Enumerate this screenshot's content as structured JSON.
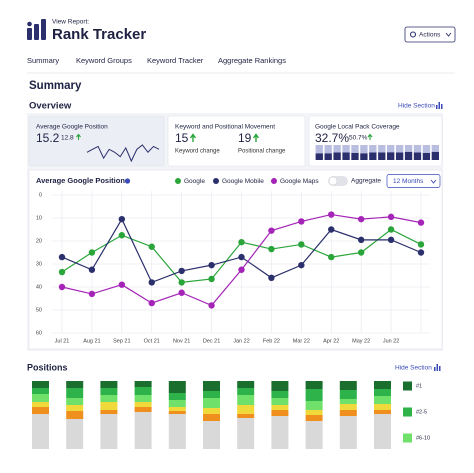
{
  "header": {
    "eyebrow": "View Report:",
    "title": "Rank Tracker",
    "action": "Actions"
  },
  "nav": [
    "Summary",
    "Keyword Groups",
    "Keyword Tracker",
    "Aggregate Rankings"
  ],
  "page_title": "Summary",
  "overview": {
    "title": "Overview",
    "hide": "Hide Section",
    "cards": [
      {
        "title": "Average Google Position",
        "value": "15.2",
        "change": "12.8",
        "sparkline": {
          "type": "line",
          "color": "#2b2f6b",
          "values": [
            18,
            17,
            16,
            20,
            17,
            18,
            19.5,
            16.5,
            21,
            17,
            15.5,
            18,
            16,
            17
          ]
        }
      },
      {
        "title": "Keyword and Positional Movement",
        "metrics": [
          {
            "value": "15",
            "label": "Keyword change"
          },
          {
            "value": "19",
            "label": "Positional change"
          }
        ]
      },
      {
        "title": "Google Local Pack Coverage",
        "value": "32.7%",
        "change": "50.7%",
        "bars": {
          "type": "bar",
          "series": [
            {
              "color": "#2b2f6b",
              "values": [
                45,
                45,
                50,
                50,
                48,
                45,
                50,
                50,
                52,
                50,
                55,
                50,
                48,
                55
              ]
            },
            {
              "color": "#b9bde0",
              "values": [
                55,
                55,
                50,
                50,
                52,
                55,
                50,
                50,
                48,
                50,
                45,
                50,
                52,
                45
              ]
            }
          ]
        }
      }
    ]
  },
  "line_chart": {
    "type": "line",
    "title": "Average Google Position",
    "toggle": "Aggregate",
    "period": "12 Months",
    "categories": [
      "Jul 21",
      "Aug 21",
      "Sep 21",
      "Oct 21",
      "Nov 21",
      "Dec 21",
      "Jan 22",
      "Feb 22",
      "Mar 22",
      "Apr 22",
      "May 22",
      "Jun 22",
      null
    ],
    "series": [
      {
        "name": "Google",
        "color": "#2aa53a",
        "values": [
          33.5,
          25,
          17.5,
          22.5,
          38,
          36.5,
          20.5,
          23.5,
          21.5,
          27,
          25,
          15,
          21.5
        ]
      },
      {
        "name": "Google Mobile",
        "color": "#2b2f6b",
        "values": [
          27,
          32.5,
          10.5,
          38,
          33,
          30.5,
          27,
          36,
          30.5,
          15,
          19.5,
          19.5,
          25
        ]
      },
      {
        "name": "Google Maps",
        "color": "#a524b8",
        "values": [
          40,
          43,
          39,
          47,
          42.5,
          48,
          32.5,
          15.5,
          11.5,
          8.5,
          10.5,
          9.5,
          12
        ]
      }
    ],
    "ylim": [
      0,
      60
    ],
    "yticks": [
      0,
      10,
      20,
      30,
      40,
      50,
      60
    ],
    "inverted": true,
    "grid": true
  },
  "positions": {
    "type": "bar",
    "title": "Positions",
    "hide": "Hide Section",
    "series": [
      {
        "name": "#1",
        "color": "#1a6e2e",
        "values": [
          7,
          7,
          7,
          6,
          12,
          10,
          7,
          10,
          8,
          9,
          8
        ]
      },
      {
        "name": "#2-5",
        "color": "#2eb34a",
        "values": [
          6,
          10,
          7,
          8,
          7,
          7,
          7,
          7,
          12,
          9,
          7
        ]
      },
      {
        "name": "#6-10",
        "color": "#6fe06a",
        "values": [
          8,
          7,
          7,
          7,
          7,
          10,
          10,
          7,
          9,
          5,
          8
        ]
      },
      {
        "color": "#f0d93a",
        "values": [
          5,
          6,
          8,
          5,
          4,
          6,
          9,
          5,
          5,
          6,
          6
        ]
      },
      {
        "color": "#ef8f1e",
        "values": [
          7,
          8,
          4,
          5,
          3,
          7,
          4,
          6,
          6,
          6,
          4
        ]
      },
      {
        "color": "#d9d9d9",
        "values": [
          35,
          30,
          35,
          37,
          35,
          28,
          31,
          33,
          28,
          33,
          35
        ]
      }
    ]
  }
}
